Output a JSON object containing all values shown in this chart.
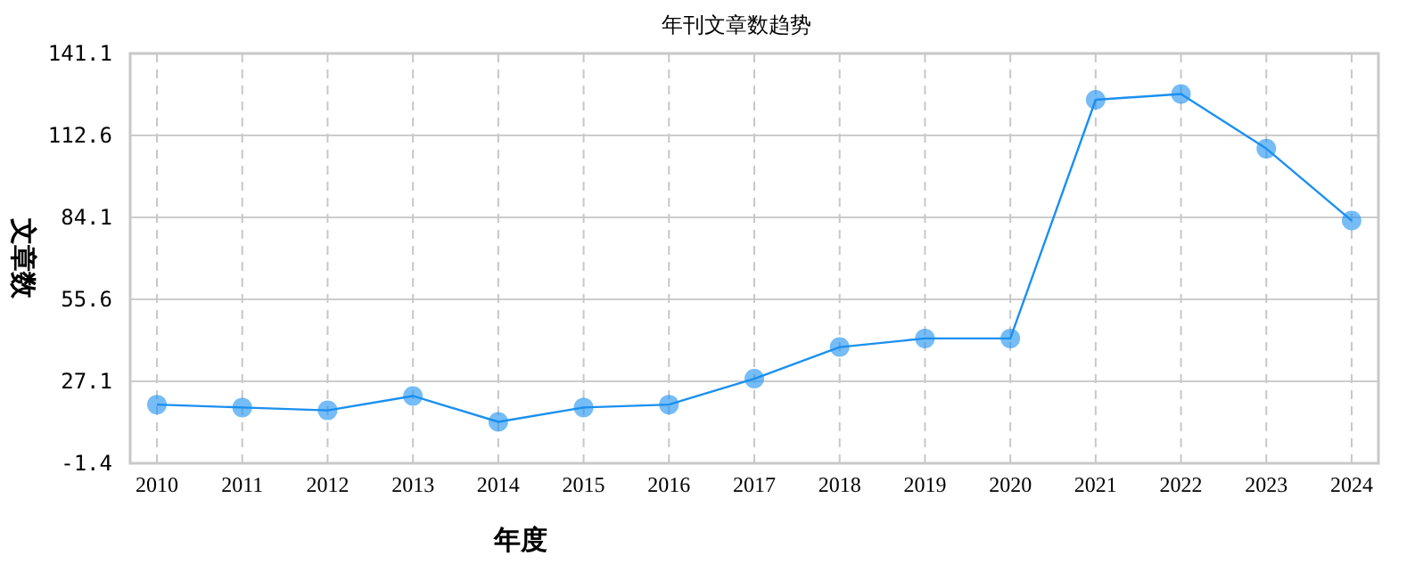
{
  "chart_data": {
    "type": "line",
    "title": "年刊文章数趋势",
    "xlabel": "年度",
    "ylabel": "文章数",
    "categories": [
      "2010",
      "2011",
      "2012",
      "2013",
      "2014",
      "2015",
      "2016",
      "2017",
      "2018",
      "2019",
      "2020",
      "2021",
      "2022",
      "2023",
      "2024"
    ],
    "series": [
      {
        "color": "#1a90f0",
        "values": [
          19,
          18,
          17,
          22,
          13,
          18,
          19,
          28,
          39,
          42,
          42,
          125,
          127,
          108,
          83
        ]
      }
    ],
    "ylim": [
      -1.4,
      141.1
    ],
    "yticks": [
      -1.4,
      27.1,
      55.6,
      84.1,
      112.6,
      141.1
    ],
    "grid": true,
    "marker": "circle",
    "line_style": "solid"
  }
}
